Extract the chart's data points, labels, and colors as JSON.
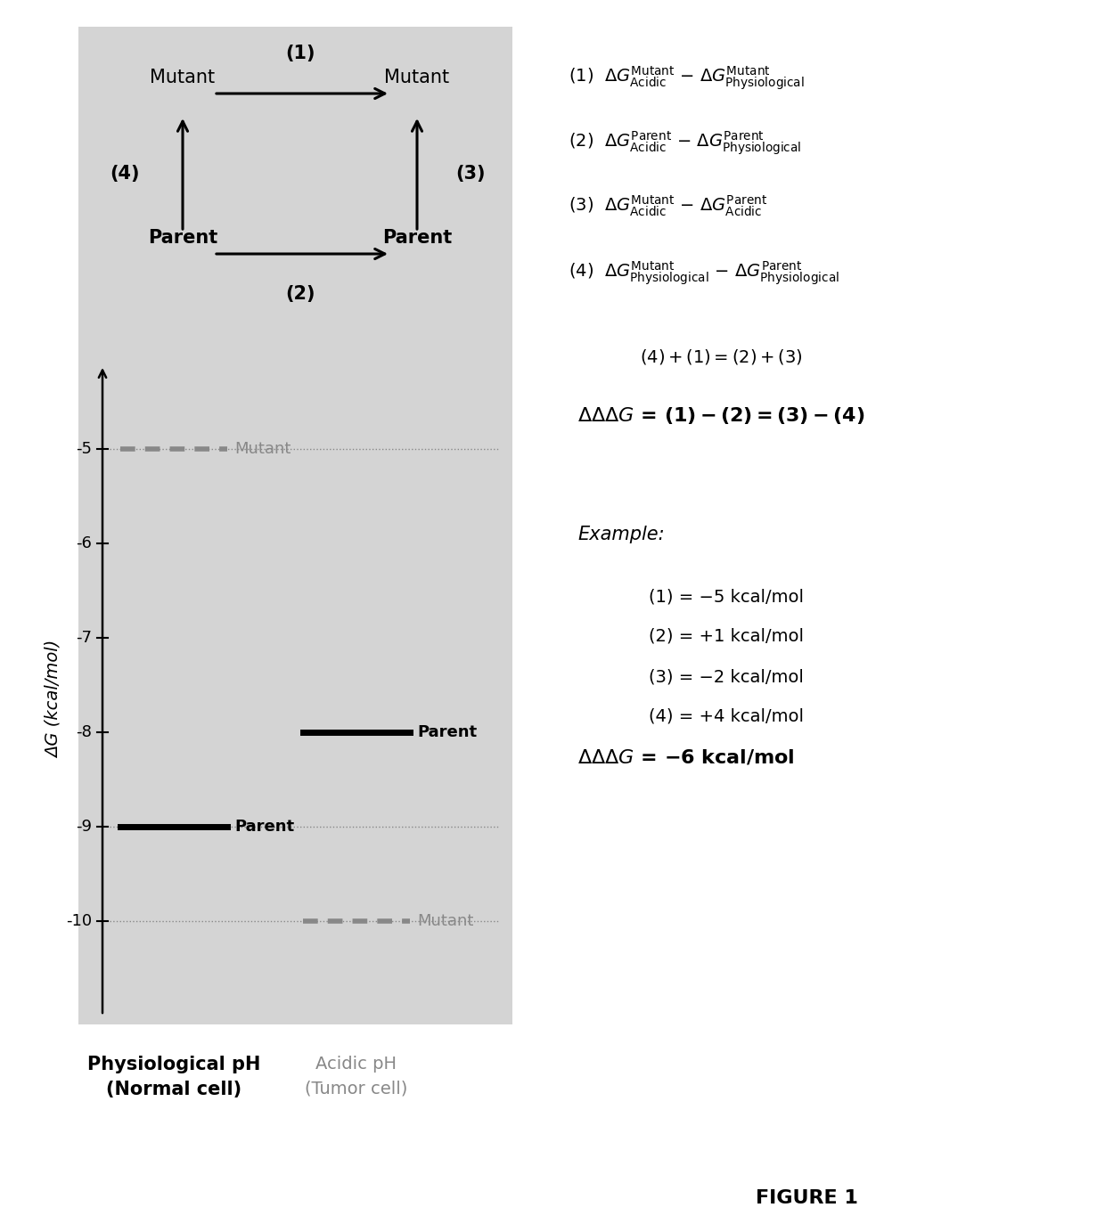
{
  "bg_color": "#d0d0d0",
  "white_bg": "#ffffff",
  "energy_ylim": [
    -11,
    -4.3
  ],
  "yticks": [
    -5,
    -6,
    -7,
    -8,
    -9,
    -10
  ],
  "ylabel": "ΔG (kcal/mol)",
  "phys_mutant_energy": -5,
  "phys_parent_energy": -9,
  "acid_parent_energy": -8,
  "acid_mutant_energy": -10,
  "phys_label_bold": "Physiological pH",
  "phys_label_normal": "(Normal cell)",
  "acid_label_bold": "Acidic pH",
  "acid_label_normal": "(Tumor cell)",
  "figure_label": "FIGURE 1"
}
